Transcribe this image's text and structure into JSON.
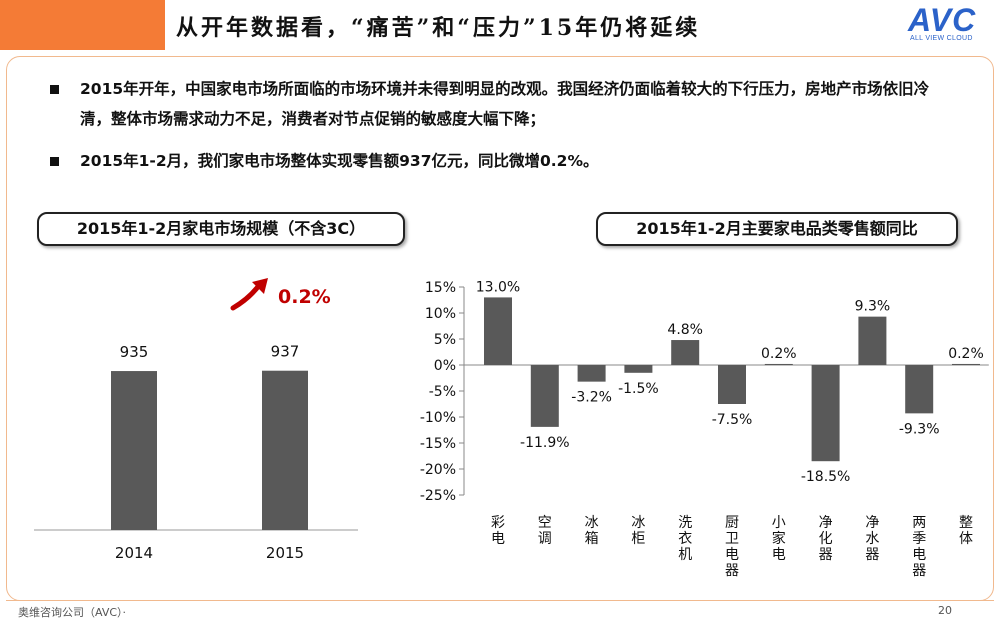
{
  "header": {
    "title": "从开年数据看，“痛苦”和“压力”15年仍将延续",
    "logo_text": "AVC",
    "logo_subtitle": "ALL VIEW CLOUD"
  },
  "bullets": [
    "2015年开年，中国家电市场所面临的市场环境并未得到明显的改观。我国经济仍面临着较大的下行压力，房地产市场依旧冷清，整体市场需求动力不足，消费者对节点促销的敏感度大幅下降；",
    "2015年1-2月，我们家电市场整体实现零售额937亿元，同比微增0.2%。"
  ],
  "chart_titles": {
    "left": "2015年1-2月家电市场规模（不含3C）",
    "right": "2015年1-2月主要家电品类零售额同比"
  },
  "colors": {
    "accent": "#f47b36",
    "bar": "#595959",
    "growth": "#c00000",
    "logo": "#2b62c9"
  },
  "chart_data": [
    {
      "type": "bar",
      "title": "2015年1-2月家电市场规模（不含3C）",
      "categories": [
        "2014",
        "2015"
      ],
      "values": [
        935,
        937
      ],
      "ylim": [
        0,
        1000
      ],
      "annotation": "0.2%"
    },
    {
      "type": "bar",
      "title": "2015年1-2月主要家电品类零售额同比",
      "categories": [
        "彩电",
        "空调",
        "冰箱",
        "冰柜",
        "洗衣机",
        "厨卫电器",
        "小家电",
        "净化器",
        "净水器",
        "两季电器",
        "整体"
      ],
      "values": [
        13.0,
        -11.9,
        -3.2,
        -1.5,
        4.8,
        -7.5,
        0.2,
        -18.5,
        9.3,
        -9.3,
        0.2
      ],
      "value_labels": [
        "13.0%",
        "-11.9%",
        "-3.2%",
        "-1.5%",
        "4.8%",
        "-7.5%",
        "0.2%",
        "-18.5%",
        "9.3%",
        "-9.3%",
        "0.2%"
      ],
      "yticks": [
        "15%",
        "10%",
        "5%",
        "0%",
        "-5%",
        "-10%",
        "-15%",
        "-20%",
        "-25%"
      ],
      "ylim": [
        -25,
        15
      ]
    }
  ],
  "footer": {
    "company": "奥维咨询公司（AVC）·",
    "page": "20"
  }
}
